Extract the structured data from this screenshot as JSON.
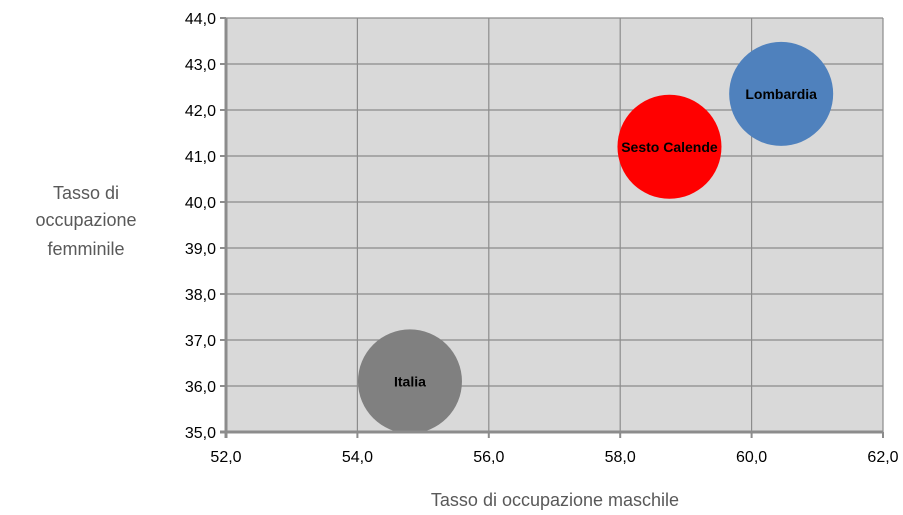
{
  "chart_data": {
    "type": "bubble",
    "title": "",
    "xlabel": "Tasso di occupazione  maschile",
    "ylabel": [
      "Tasso di",
      "occupazione",
      "femminile"
    ],
    "xlim": [
      52,
      62
    ],
    "ylim": [
      35,
      44
    ],
    "x_ticks": [
      52,
      54,
      56,
      58,
      60,
      62
    ],
    "y_ticks": [
      35,
      36,
      37,
      38,
      39,
      40,
      41,
      42,
      43,
      44
    ],
    "x_tick_labels": [
      "52,0",
      "54,0",
      "56,0",
      "58,0",
      "60,0",
      "62,0"
    ],
    "y_tick_labels": [
      "35,0",
      "36,0",
      "37,0",
      "38,0",
      "39,0",
      "40,0",
      "41,0",
      "42,0",
      "43,0",
      "44,0"
    ],
    "grid": true,
    "plot_background": "#d9d9d9",
    "gridline_color": "#8c8c8c",
    "series": [
      {
        "name": "Italia",
        "x": 54.8,
        "y": 36.1,
        "color": "#808080"
      },
      {
        "name": "Sesto Calende",
        "x": 58.75,
        "y": 41.2,
        "color": "#ff0000"
      },
      {
        "name": "Lombardia",
        "x": 60.45,
        "y": 42.35,
        "color": "#4f81bd"
      }
    ]
  }
}
